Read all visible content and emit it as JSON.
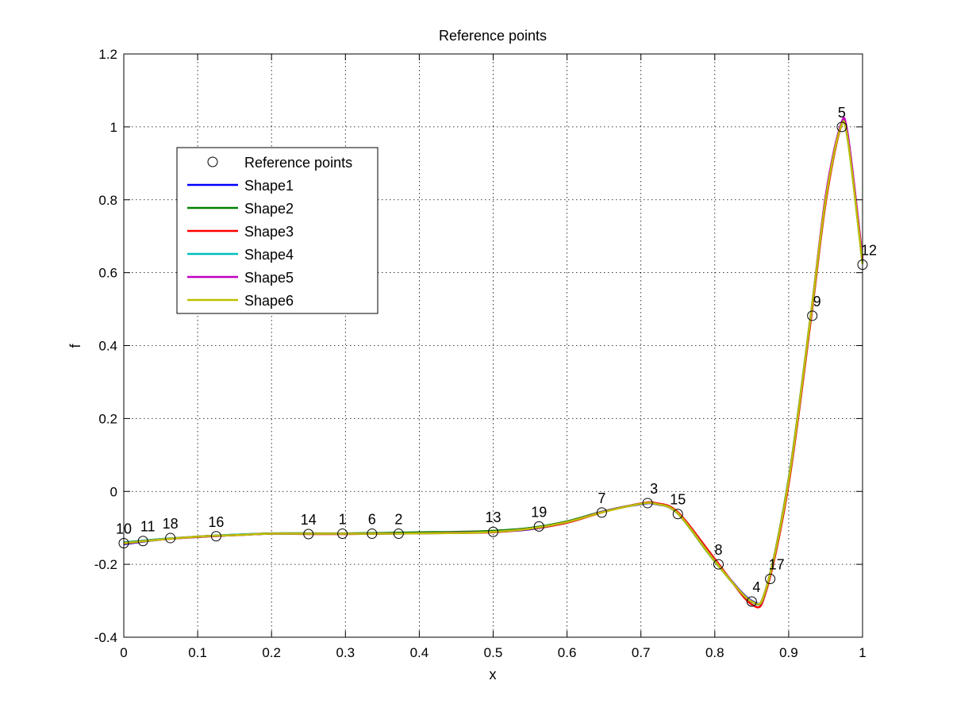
{
  "chart_data": {
    "type": "line",
    "title": "Reference points",
    "xlabel": "x",
    "ylabel": "f",
    "xlim": [
      0,
      1
    ],
    "ylim": [
      -0.4,
      1.2
    ],
    "xticks": [
      0,
      0.1,
      0.2,
      0.3,
      0.4,
      0.5,
      0.6,
      0.7,
      0.8,
      0.9,
      1
    ],
    "xtick_labels": [
      "0",
      "0.1",
      "0.2",
      "0.3",
      "0.4",
      "0.5",
      "0.6",
      "0.7",
      "0.8",
      "0.9",
      "1"
    ],
    "yticks": [
      -0.4,
      -0.2,
      0,
      0.2,
      0.4,
      0.6,
      0.8,
      1,
      1.2
    ],
    "ytick_labels": [
      "-0.4",
      "-0.2",
      "0",
      "0.2",
      "0.4",
      "0.6",
      "0.8",
      "1",
      "1.2"
    ],
    "grid": true,
    "legend_position": "upper-left",
    "reference_points": {
      "name": "Reference points",
      "points": [
        {
          "label": "1",
          "x": 0.296,
          "y": -0.116
        },
        {
          "label": "2",
          "x": 0.372,
          "y": -0.116
        },
        {
          "label": "3",
          "x": 0.709,
          "y": -0.032
        },
        {
          "label": "4",
          "x": 0.85,
          "y": -0.302
        },
        {
          "label": "5",
          "x": 0.972,
          "y": 1.0
        },
        {
          "label": "6",
          "x": 0.336,
          "y": -0.116
        },
        {
          "label": "7",
          "x": 0.647,
          "y": -0.058
        },
        {
          "label": "8",
          "x": 0.805,
          "y": -0.2
        },
        {
          "label": "9",
          "x": 0.932,
          "y": 0.482
        },
        {
          "label": "10",
          "x": 0.0,
          "y": -0.142
        },
        {
          "label": "11",
          "x": 0.026,
          "y": -0.136
        },
        {
          "label": "12",
          "x": 1.0,
          "y": 0.622
        },
        {
          "label": "13",
          "x": 0.5,
          "y": -0.111
        },
        {
          "label": "14",
          "x": 0.25,
          "y": -0.117
        },
        {
          "label": "15",
          "x": 0.75,
          "y": -0.062
        },
        {
          "label": "16",
          "x": 0.125,
          "y": -0.123
        },
        {
          "label": "17",
          "x": 0.875,
          "y": -0.24
        },
        {
          "label": "18",
          "x": 0.063,
          "y": -0.128
        },
        {
          "label": "19",
          "x": 0.562,
          "y": -0.096
        }
      ]
    },
    "series": [
      {
        "name": "Shape1",
        "color": "#0000ff",
        "x": [
          0,
          0.05,
          0.1,
          0.15,
          0.2,
          0.25,
          0.3,
          0.35,
          0.4,
          0.45,
          0.5,
          0.55,
          0.6,
          0.65,
          0.7,
          0.72,
          0.75,
          0.8,
          0.85,
          0.87,
          0.9,
          0.93,
          0.95,
          0.97,
          0.98,
          1
        ],
        "y": [
          -0.145,
          -0.132,
          -0.125,
          -0.12,
          -0.116,
          -0.116,
          -0.116,
          -0.115,
          -0.113,
          -0.112,
          -0.111,
          -0.104,
          -0.085,
          -0.055,
          -0.035,
          -0.035,
          -0.06,
          -0.19,
          -0.3,
          -0.265,
          0.03,
          0.48,
          0.8,
          1.0,
          0.97,
          0.63
        ]
      },
      {
        "name": "Shape2",
        "color": "#008000",
        "x": [
          0,
          0.05,
          0.1,
          0.15,
          0.2,
          0.25,
          0.3,
          0.35,
          0.4,
          0.45,
          0.5,
          0.55,
          0.6,
          0.65,
          0.7,
          0.72,
          0.75,
          0.8,
          0.85,
          0.87,
          0.9,
          0.93,
          0.95,
          0.97,
          0.98,
          1
        ],
        "y": [
          -0.14,
          -0.131,
          -0.124,
          -0.119,
          -0.115,
          -0.115,
          -0.115,
          -0.114,
          -0.112,
          -0.111,
          -0.108,
          -0.1,
          -0.082,
          -0.054,
          -0.034,
          -0.034,
          -0.061,
          -0.192,
          -0.302,
          -0.262,
          0.035,
          0.485,
          0.805,
          0.998,
          0.965,
          0.625
        ]
      },
      {
        "name": "Shape3",
        "color": "#ff0000",
        "x": [
          0,
          0.05,
          0.1,
          0.15,
          0.2,
          0.25,
          0.3,
          0.35,
          0.4,
          0.45,
          0.5,
          0.55,
          0.6,
          0.65,
          0.7,
          0.72,
          0.75,
          0.8,
          0.85,
          0.87,
          0.9,
          0.93,
          0.95,
          0.97,
          0.98,
          1
        ],
        "y": [
          -0.143,
          -0.132,
          -0.125,
          -0.12,
          -0.116,
          -0.117,
          -0.117,
          -0.116,
          -0.115,
          -0.114,
          -0.112,
          -0.103,
          -0.086,
          -0.056,
          -0.033,
          -0.032,
          -0.057,
          -0.185,
          -0.31,
          -0.27,
          0.02,
          0.47,
          0.79,
          0.995,
          0.975,
          0.64
        ]
      },
      {
        "name": "Shape4",
        "color": "#00bfbf",
        "x": [
          0,
          0.05,
          0.1,
          0.15,
          0.2,
          0.25,
          0.3,
          0.35,
          0.4,
          0.45,
          0.5,
          0.55,
          0.6,
          0.65,
          0.7,
          0.72,
          0.75,
          0.8,
          0.85,
          0.87,
          0.9,
          0.93,
          0.95,
          0.97,
          0.98,
          1
        ],
        "y": [
          -0.141,
          -0.131,
          -0.124,
          -0.119,
          -0.116,
          -0.116,
          -0.116,
          -0.116,
          -0.115,
          -0.114,
          -0.111,
          -0.102,
          -0.084,
          -0.055,
          -0.034,
          -0.034,
          -0.06,
          -0.19,
          -0.303,
          -0.264,
          0.03,
          0.48,
          0.8,
          0.998,
          0.968,
          0.628
        ]
      },
      {
        "name": "Shape5",
        "color": "#bf00bf",
        "x": [
          0,
          0.05,
          0.1,
          0.15,
          0.2,
          0.25,
          0.3,
          0.35,
          0.4,
          0.45,
          0.5,
          0.55,
          0.6,
          0.65,
          0.7,
          0.72,
          0.75,
          0.8,
          0.85,
          0.87,
          0.9,
          0.93,
          0.95,
          0.97,
          0.98,
          1
        ],
        "y": [
          -0.142,
          -0.132,
          -0.124,
          -0.12,
          -0.116,
          -0.116,
          -0.116,
          -0.116,
          -0.115,
          -0.113,
          -0.111,
          -0.102,
          -0.084,
          -0.055,
          -0.034,
          -0.034,
          -0.06,
          -0.19,
          -0.302,
          -0.263,
          0.03,
          0.482,
          0.81,
          1.002,
          0.98,
          0.635
        ]
      },
      {
        "name": "Shape6",
        "color": "#bfbf00",
        "x": [
          0,
          0.05,
          0.1,
          0.15,
          0.2,
          0.25,
          0.3,
          0.35,
          0.4,
          0.45,
          0.5,
          0.55,
          0.6,
          0.65,
          0.7,
          0.72,
          0.75,
          0.8,
          0.85,
          0.87,
          0.9,
          0.93,
          0.95,
          0.97,
          0.98,
          1
        ],
        "y": [
          -0.142,
          -0.132,
          -0.124,
          -0.12,
          -0.116,
          -0.116,
          -0.116,
          -0.116,
          -0.115,
          -0.114,
          -0.111,
          -0.102,
          -0.084,
          -0.056,
          -0.034,
          -0.034,
          -0.06,
          -0.191,
          -0.302,
          -0.263,
          0.03,
          0.482,
          0.8,
          0.997,
          0.965,
          0.624
        ]
      }
    ]
  }
}
